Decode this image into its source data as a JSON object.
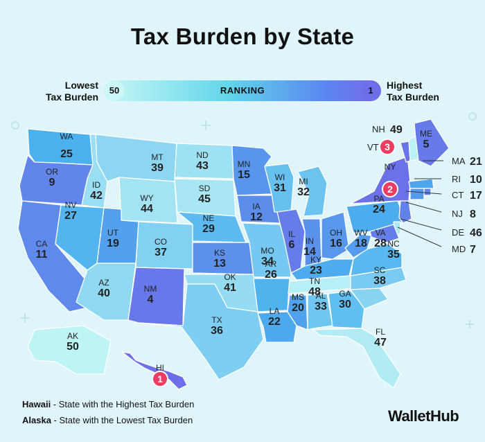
{
  "title": "Tax Burden by State",
  "legend": {
    "left_label_1": "Lowest",
    "left_label_2": "Tax Burden",
    "right_label_1": "Highest",
    "right_label_2": "Tax Burden",
    "bar_label": "RANKING",
    "low_value": "50",
    "high_value": "1"
  },
  "colors": {
    "rank_1": "#6c6fe8",
    "rank_25": "#4ab0ee",
    "rank_50": "#bff4f6",
    "badge": "#ec3c62"
  },
  "states": [
    {
      "abbr": "WA",
      "rank": "25"
    },
    {
      "abbr": "OR",
      "rank": "9"
    },
    {
      "abbr": "CA",
      "rank": "11"
    },
    {
      "abbr": "ID",
      "rank": "42"
    },
    {
      "abbr": "NV",
      "rank": "27"
    },
    {
      "abbr": "MT",
      "rank": "39"
    },
    {
      "abbr": "WY",
      "rank": "44"
    },
    {
      "abbr": "UT",
      "rank": "19"
    },
    {
      "abbr": "AZ",
      "rank": "40"
    },
    {
      "abbr": "CO",
      "rank": "37"
    },
    {
      "abbr": "NM",
      "rank": "4"
    },
    {
      "abbr": "ND",
      "rank": "43"
    },
    {
      "abbr": "SD",
      "rank": "45"
    },
    {
      "abbr": "NE",
      "rank": "29"
    },
    {
      "abbr": "KS",
      "rank": "13"
    },
    {
      "abbr": "OK",
      "rank": "41"
    },
    {
      "abbr": "TX",
      "rank": "36"
    },
    {
      "abbr": "MN",
      "rank": "15"
    },
    {
      "abbr": "IA",
      "rank": "12"
    },
    {
      "abbr": "MO",
      "rank": "34"
    },
    {
      "abbr": "AR",
      "rank": "26"
    },
    {
      "abbr": "LA",
      "rank": "22"
    },
    {
      "abbr": "WI",
      "rank": "31"
    },
    {
      "abbr": "IL",
      "rank": "6"
    },
    {
      "abbr": "MI",
      "rank": "32"
    },
    {
      "abbr": "IN",
      "rank": "14"
    },
    {
      "abbr": "OH",
      "rank": "16"
    },
    {
      "abbr": "KY",
      "rank": "23"
    },
    {
      "abbr": "TN",
      "rank": "48"
    },
    {
      "abbr": "MS",
      "rank": "20"
    },
    {
      "abbr": "AL",
      "rank": "33"
    },
    {
      "abbr": "GA",
      "rank": "30"
    },
    {
      "abbr": "FL",
      "rank": "47"
    },
    {
      "abbr": "SC",
      "rank": "38"
    },
    {
      "abbr": "NC",
      "rank": "35"
    },
    {
      "abbr": "VA",
      "rank": "28"
    },
    {
      "abbr": "WV",
      "rank": "18"
    },
    {
      "abbr": "PA",
      "rank": "24"
    },
    {
      "abbr": "NY",
      "rank": "2"
    },
    {
      "abbr": "VT",
      "rank": "3"
    },
    {
      "abbr": "NH",
      "rank": "49"
    },
    {
      "abbr": "ME",
      "rank": "5"
    },
    {
      "abbr": "MA",
      "rank": "21"
    },
    {
      "abbr": "RI",
      "rank": "10"
    },
    {
      "abbr": "CT",
      "rank": "17"
    },
    {
      "abbr": "NJ",
      "rank": "8"
    },
    {
      "abbr": "DE",
      "rank": "46"
    },
    {
      "abbr": "MD",
      "rank": "7"
    },
    {
      "abbr": "AK",
      "rank": "50"
    },
    {
      "abbr": "HI",
      "rank": "1"
    }
  ],
  "footnotes": {
    "hawaii_name": "Hawaii",
    "hawaii_text": " - State with the Highest Tax Burden",
    "alaska_name": "Alaska",
    "alaska_text": " - State with the Lowest Tax Burden"
  },
  "brand": "WalletHub"
}
